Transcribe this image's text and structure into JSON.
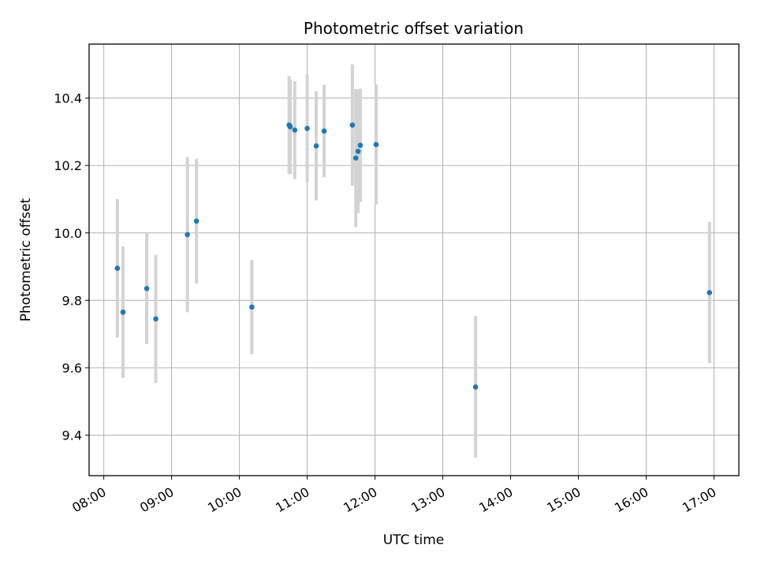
{
  "chart_data": {
    "type": "scatter",
    "title": "Photometric offset variation",
    "xlabel": "UTC time",
    "ylabel": "Photometric offset",
    "xlim": [
      "07:47",
      "17:22"
    ],
    "ylim": [
      9.28,
      10.56
    ],
    "x_ticks": [
      "08:00",
      "09:00",
      "10:00",
      "11:00",
      "12:00",
      "13:00",
      "14:00",
      "15:00",
      "16:00",
      "17:00"
    ],
    "y_ticks": [
      9.4,
      9.6,
      9.8,
      10.0,
      10.2,
      10.4
    ],
    "y_tick_labels": [
      "9.4",
      "9.6",
      "9.8",
      "10.0",
      "10.2",
      "10.4"
    ],
    "grid": true,
    "point_color": "#1f77b4",
    "errorbar_color": "#d3d3d3",
    "points": [
      {
        "x": "08:12",
        "y": 9.895,
        "err": 0.205
      },
      {
        "x": "08:17",
        "y": 9.765,
        "err": 0.195
      },
      {
        "x": "08:38",
        "y": 9.835,
        "err": 0.165
      },
      {
        "x": "08:46",
        "y": 9.745,
        "err": 0.19
      },
      {
        "x": "09:14",
        "y": 9.995,
        "err": 0.23
      },
      {
        "x": "09:22",
        "y": 10.035,
        "err": 0.185
      },
      {
        "x": "10:11",
        "y": 9.78,
        "err": 0.14
      },
      {
        "x": "10:44",
        "y": 10.32,
        "err": 0.145
      },
      {
        "x": "10:45",
        "y": 10.315,
        "err": 0.14
      },
      {
        "x": "10:49",
        "y": 10.305,
        "err": 0.145
      },
      {
        "x": "11:00",
        "y": 10.31,
        "err": 0.16
      },
      {
        "x": "11:08",
        "y": 10.258,
        "err": 0.162
      },
      {
        "x": "11:15",
        "y": 10.302,
        "err": 0.137
      },
      {
        "x": "11:40",
        "y": 10.32,
        "err": 0.18
      },
      {
        "x": "11:43",
        "y": 10.222,
        "err": 0.205
      },
      {
        "x": "11:45",
        "y": 10.242,
        "err": 0.183
      },
      {
        "x": "11:47",
        "y": 10.26,
        "err": 0.168
      },
      {
        "x": "12:01",
        "y": 10.262,
        "err": 0.178
      },
      {
        "x": "13:29",
        "y": 9.543,
        "err": 0.21
      },
      {
        "x": "16:56",
        "y": 9.823,
        "err": 0.21
      }
    ]
  }
}
